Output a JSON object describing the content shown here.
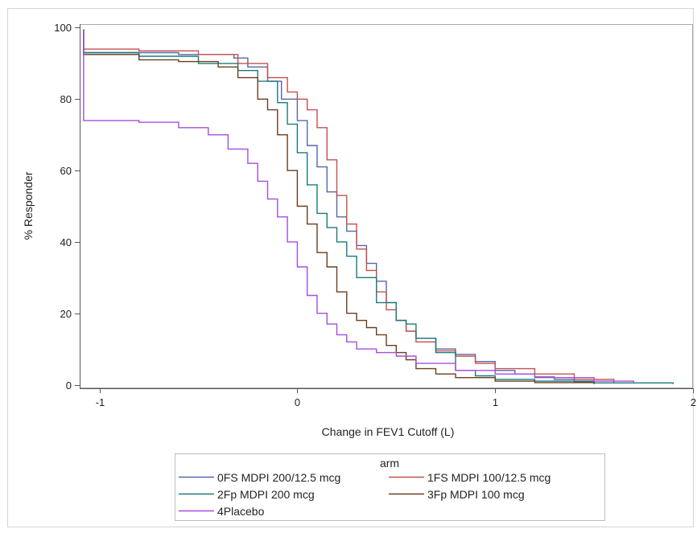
{
  "chart_data": {
    "type": "line",
    "step": true,
    "xlabel": "Change in FEV1 Cutoff (L)",
    "ylabel": "% Responder",
    "xlim": [
      -1.1,
      2.0
    ],
    "ylim": [
      -1,
      101
    ],
    "xticks": [
      -1,
      0,
      1,
      2
    ],
    "xtick_labels": [
      "-1",
      "0",
      "1",
      "2"
    ],
    "yticks": [
      0,
      20,
      40,
      60,
      80,
      100
    ],
    "ytick_labels": [
      "0",
      "20",
      "40",
      "60",
      "80",
      "100"
    ],
    "grid": false,
    "legend_title": "arm",
    "legend_position": "bottom",
    "series": [
      {
        "name": "0FS MDPI 200/12.5 mcg",
        "color": "#5567a8",
        "x": [
          -1.08,
          -1.08,
          -0.6,
          -0.32,
          -0.25,
          -0.15,
          -0.08,
          0.0,
          0.05,
          0.1,
          0.15,
          0.2,
          0.25,
          0.3,
          0.35,
          0.4,
          0.45,
          0.5,
          0.55,
          0.6,
          0.7,
          0.8,
          0.9,
          1.0,
          1.1,
          1.2,
          1.3,
          1.4,
          1.5
        ],
        "y": [
          99.5,
          93,
          92.5,
          91.5,
          89,
          85,
          80,
          74,
          67,
          61,
          54,
          47,
          43,
          39,
          34,
          29,
          23,
          18,
          15,
          13,
          10,
          8.5,
          6.5,
          4,
          3,
          2.2,
          1.5,
          0.8,
          0.3
        ]
      },
      {
        "name": "1FS MDPI 100/12.5 mcg",
        "color": "#c4504d",
        "x": [
          -1.08,
          -1.08,
          -0.8,
          -0.5,
          -0.3,
          -0.15,
          -0.05,
          0.0,
          0.05,
          0.1,
          0.15,
          0.2,
          0.25,
          0.3,
          0.35,
          0.4,
          0.45,
          0.5,
          0.55,
          0.6,
          0.7,
          0.8,
          0.9,
          1.0,
          1.2,
          1.4,
          1.6
        ],
        "y": [
          99.5,
          94,
          93.5,
          92.5,
          90,
          86,
          82,
          80,
          77,
          72,
          63,
          53,
          45,
          38,
          32,
          26,
          21,
          18,
          15,
          12,
          9.5,
          8,
          6,
          4.5,
          3,
          1.5,
          0.5
        ]
      },
      {
        "name": "2Fp MDPI 200 mcg",
        "color": "#1a7b7a",
        "x": [
          -1.08,
          -1.08,
          -0.8,
          -0.5,
          -0.3,
          -0.2,
          -0.1,
          -0.05,
          0.0,
          0.05,
          0.1,
          0.15,
          0.2,
          0.25,
          0.3,
          0.4,
          0.5,
          0.55,
          0.6,
          0.7,
          0.8,
          0.9,
          1.0,
          1.2,
          1.5,
          1.9
        ],
        "y": [
          99.5,
          93,
          92,
          90,
          88,
          85,
          79,
          73,
          65,
          56,
          48,
          44,
          40,
          36,
          30,
          23,
          18,
          17,
          13,
          9,
          4,
          2.5,
          1.5,
          1.0,
          0.5,
          0.2
        ]
      },
      {
        "name": "3Fp MDPI 100 mcg",
        "color": "#6b3e1e",
        "x": [
          -1.08,
          -1.08,
          -0.8,
          -0.6,
          -0.4,
          -0.3,
          -0.2,
          -0.15,
          -0.1,
          -0.05,
          0.0,
          0.05,
          0.1,
          0.15,
          0.2,
          0.25,
          0.3,
          0.35,
          0.4,
          0.45,
          0.5,
          0.55,
          0.6,
          0.7,
          0.8,
          1.0,
          1.2,
          1.5
        ],
        "y": [
          99.5,
          92.5,
          91,
          90.5,
          89,
          86,
          80,
          77,
          70,
          60,
          50,
          45,
          37,
          33,
          26,
          20,
          18,
          16,
          14,
          11,
          9,
          7,
          4.5,
          3,
          2,
          1,
          0.6,
          0.2
        ]
      },
      {
        "name": "4Placebo",
        "color": "#a64de0",
        "x": [
          -1.08,
          -1.08,
          -0.8,
          -0.6,
          -0.45,
          -0.35,
          -0.25,
          -0.2,
          -0.15,
          -0.1,
          -0.05,
          0.0,
          0.05,
          0.1,
          0.15,
          0.2,
          0.25,
          0.3,
          0.4,
          0.5,
          0.6,
          0.8,
          1.0,
          1.2,
          1.5,
          1.7
        ],
        "y": [
          99.5,
          74,
          73.5,
          72,
          70,
          66,
          62,
          57,
          52,
          47,
          40,
          33,
          25,
          20,
          17,
          14,
          12,
          10,
          9,
          8,
          6,
          4,
          3,
          2,
          1,
          0.5
        ]
      }
    ]
  }
}
